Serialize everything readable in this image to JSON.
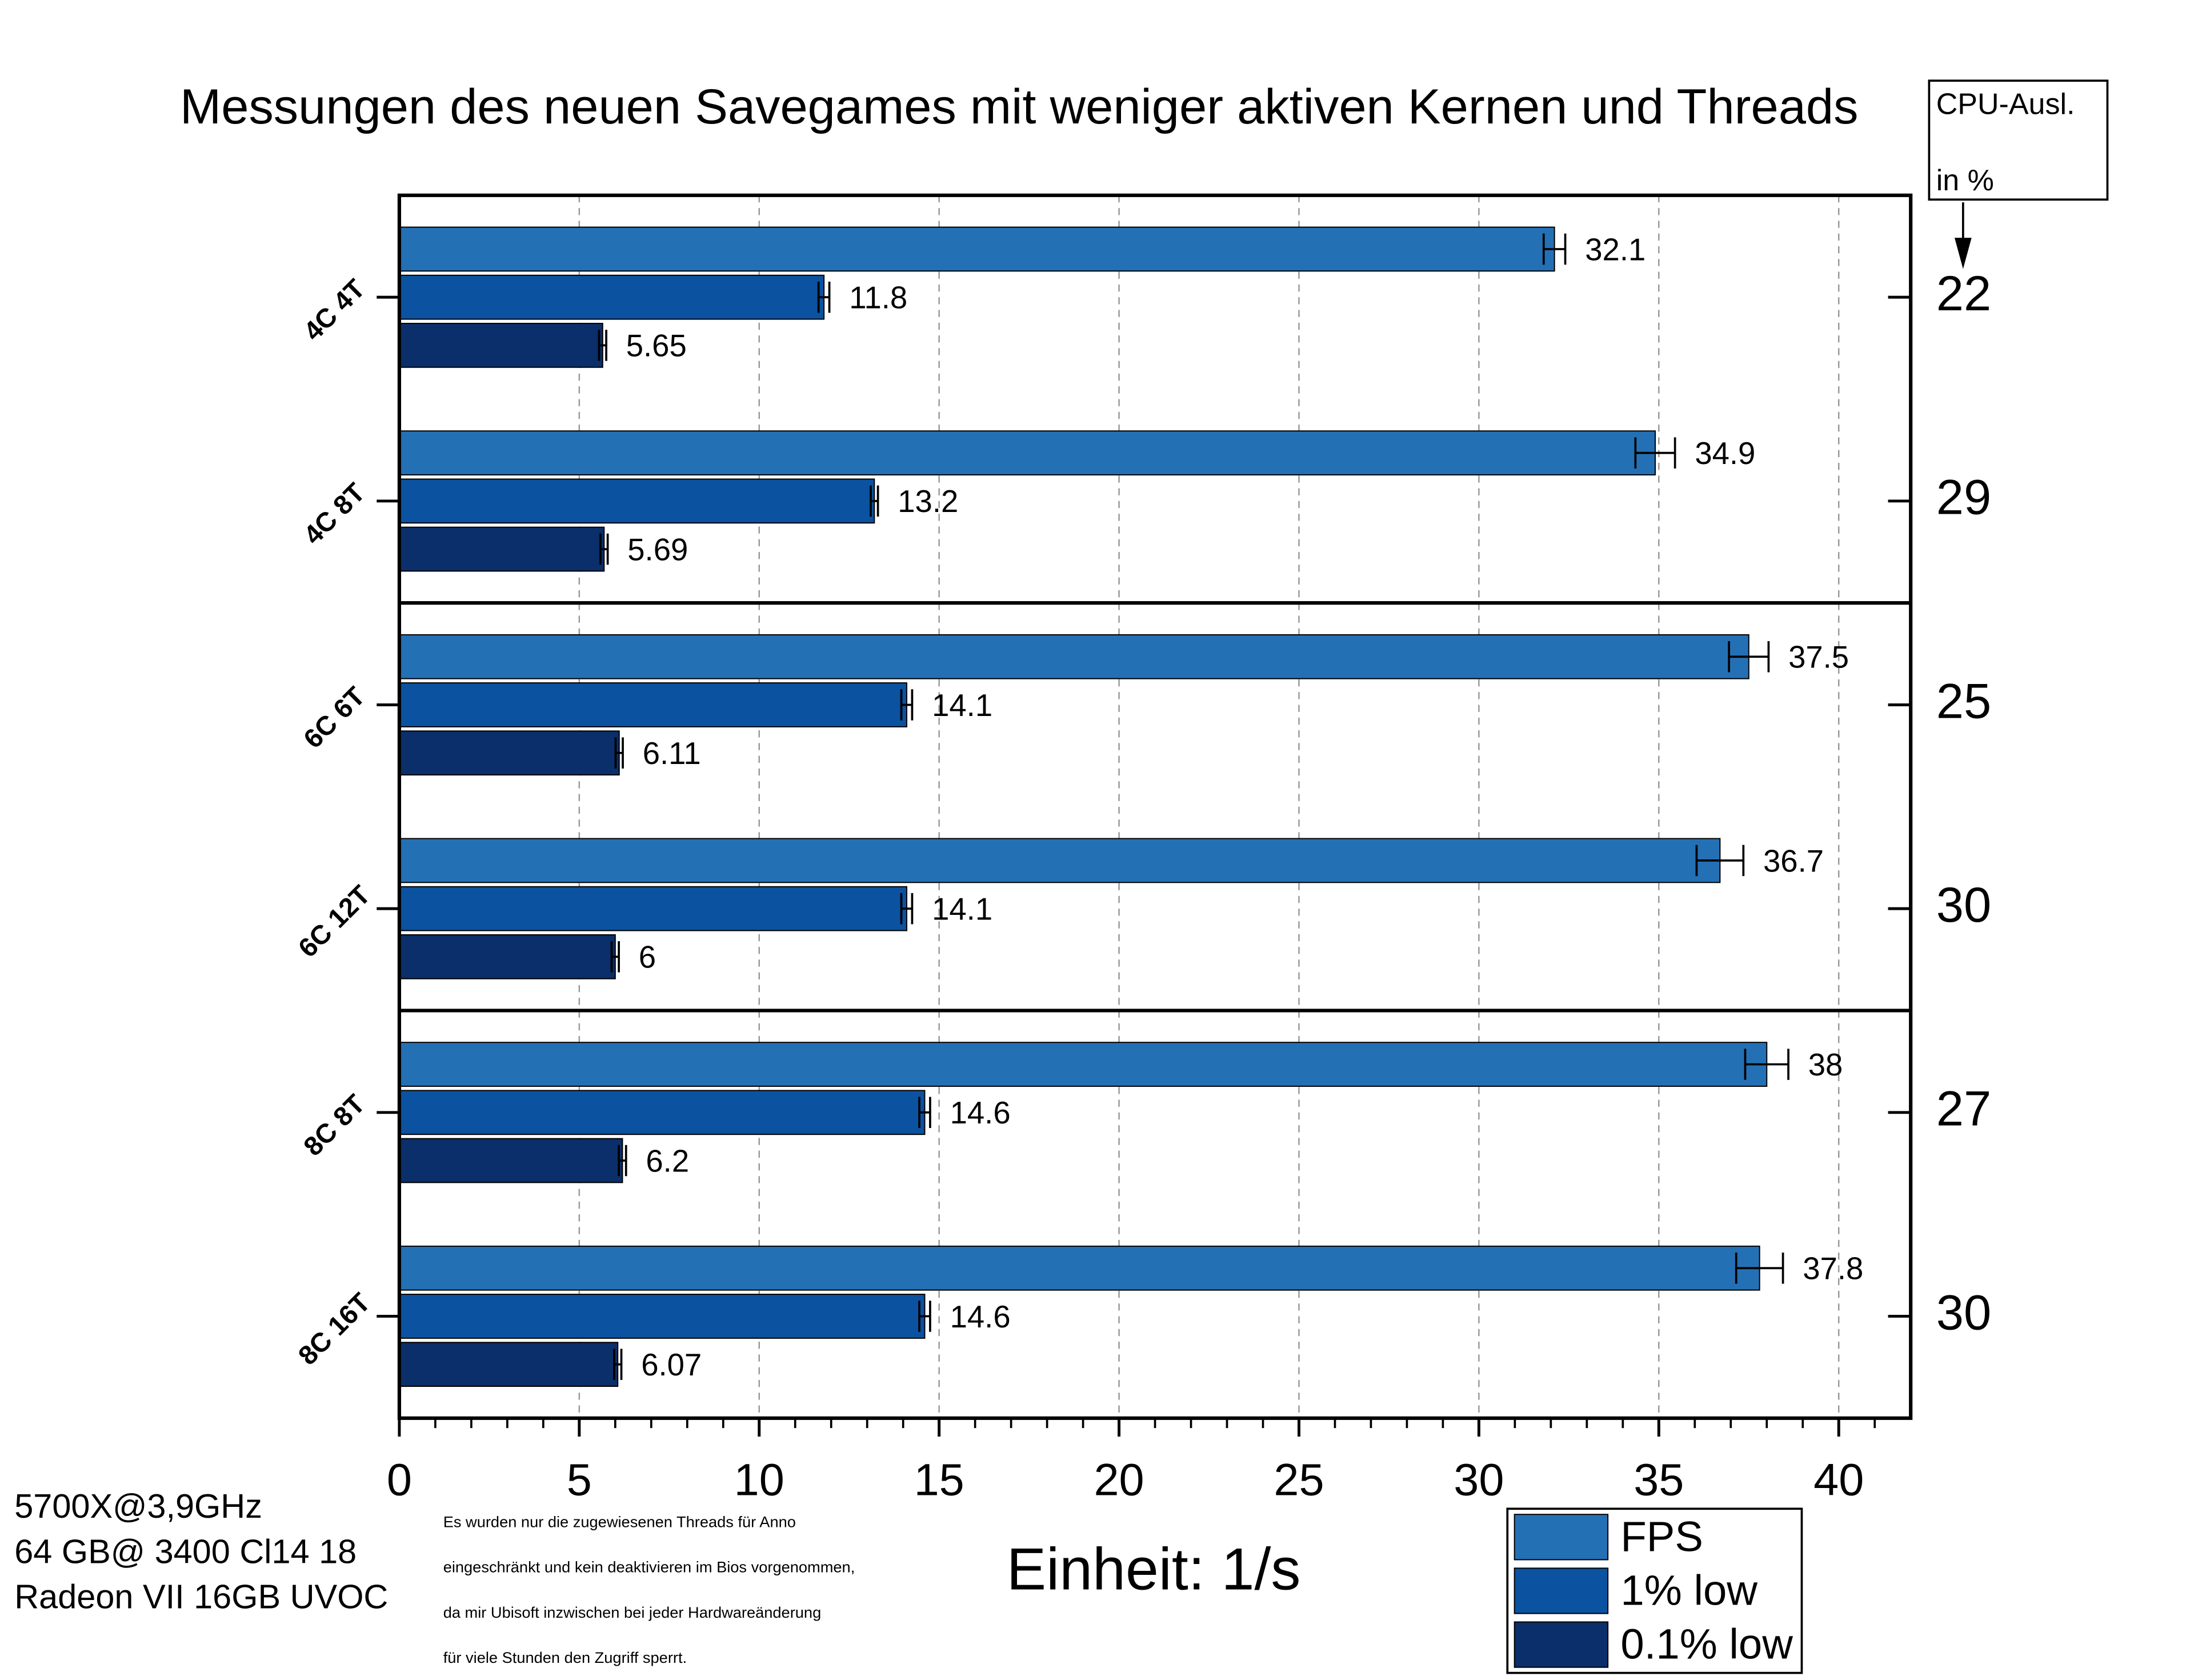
{
  "chart_data": {
    "type": "bar",
    "orientation": "horizontal",
    "title": "Messungen des neuen Savegames mit weniger aktiven Kernen und Threads",
    "xlabel": "Einheit: 1/s",
    "categories": [
      "4C 4T",
      "4C 8T",
      "6C 6T",
      "6C 12T",
      "8C 8T",
      "8C 16T"
    ],
    "series": [
      {
        "name": "FPS",
        "color": "#2470b5",
        "values": [
          32.1,
          34.9,
          37.5,
          36.7,
          38,
          37.8
        ],
        "errors": [
          0.3,
          0.55,
          0.55,
          0.65,
          0.6,
          0.65
        ]
      },
      {
        "name": "1% low",
        "color": "#0b52a0",
        "values": [
          11.8,
          13.2,
          14.1,
          14.1,
          14.6,
          14.6
        ],
        "errors": [
          0.15,
          0.1,
          0.15,
          0.15,
          0.15,
          0.15
        ]
      },
      {
        "name": "0.1% low",
        "color": "#0a2f6a",
        "values": [
          5.65,
          5.69,
          6.11,
          6,
          6.2,
          6.07
        ],
        "errors": [
          0.1,
          0.1,
          0.1,
          0.1,
          0.1,
          0.1
        ]
      }
    ],
    "xlim": [
      0,
      42
    ],
    "xticks": [
      0,
      5,
      10,
      15,
      20,
      25,
      30,
      35,
      40
    ],
    "grid": true,
    "cpu_header": [
      "CPU-Ausl.",
      "in %"
    ],
    "cpu_usage": [
      22,
      29,
      25,
      30,
      27,
      30
    ],
    "system_info": [
      "5700X@3,9GHz",
      "64 GB@ 3400 Cl14 18",
      "Radeon VII 16GB UVOC"
    ],
    "note": [
      "Es wurden nur die zugewiesenen Threads für Anno",
      "eingeschränkt und kein deaktivieren im Bios vorgenommen,",
      " da mir Ubisoft inzwischen bei jeder Hardwareänderung",
      "für viele Stunden den Zugriff sperrt."
    ],
    "legend": "bottom-right"
  }
}
